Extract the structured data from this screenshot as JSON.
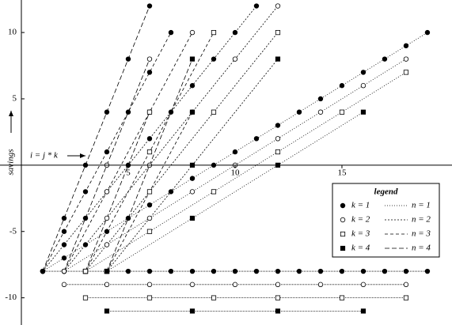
{
  "chart_data": {
    "type": "line-scatter",
    "y_label": "savings",
    "annotation": "i = j * k",
    "xlim": [
      -1,
      20.15
    ],
    "ylim": [
      -12.05,
      12.45
    ],
    "xticks": [
      5,
      10,
      15
    ],
    "yticks": [
      -10,
      -5,
      5,
      10
    ],
    "legend": {
      "title": "legend",
      "position": "lower right",
      "markers": [
        {
          "label": "k = 1",
          "marker": "filled-circle"
        },
        {
          "label": "k = 2",
          "marker": "open-circle"
        },
        {
          "label": "k = 3",
          "marker": "open-square"
        },
        {
          "label": "k = 4",
          "marker": "filled-square"
        }
      ],
      "lines": [
        {
          "label": "n = 1",
          "dash": "1,2"
        },
        {
          "label": "n = 2",
          "dash": "2,2"
        },
        {
          "label": "n = 3",
          "dash": "4,3"
        },
        {
          "label": "n = 4",
          "dash": "6,3"
        }
      ]
    },
    "series": [
      {
        "marker": "filled-circle",
        "dash": "1,1",
        "x": [
          1,
          2,
          3,
          4,
          5,
          6,
          7,
          8,
          9,
          10,
          11,
          12,
          13,
          14,
          15,
          16,
          17,
          18,
          19
        ],
        "y": [
          -8,
          -8,
          -8,
          -8,
          -8,
          -8,
          -8,
          -8,
          -8,
          -8,
          -8,
          -8,
          -8,
          -8,
          -8,
          -8,
          -8,
          -8,
          -8
        ]
      },
      {
        "marker": "open-circle",
        "dash": "1,1",
        "x": [
          2,
          4,
          6,
          8,
          10,
          12,
          14,
          16,
          18
        ],
        "y": [
          -9,
          -9,
          -9,
          -9,
          -9,
          -9,
          -9,
          -9,
          -9
        ]
      },
      {
        "marker": "open-square",
        "dash": "1,1",
        "x": [
          3,
          6,
          9,
          12,
          15,
          18
        ],
        "y": [
          -10,
          -10,
          -10,
          -10,
          -10,
          -10
        ]
      },
      {
        "marker": "filled-square",
        "dash": "1,1",
        "x": [
          4,
          8,
          12,
          16
        ],
        "y": [
          -11,
          -11,
          -11,
          -11
        ]
      },
      {
        "marker": "filled-circle",
        "dash": "1,2",
        "x": [
          1,
          2,
          3,
          4,
          5,
          6,
          7,
          8,
          9,
          10,
          11,
          12,
          13,
          14,
          15,
          16,
          17,
          18,
          19
        ],
        "y": [
          -8,
          -7,
          -6,
          -5,
          -4,
          -3,
          -2,
          -1,
          0,
          1,
          2,
          3,
          4,
          5,
          6,
          7,
          8,
          9,
          10
        ]
      },
      {
        "marker": "open-circle",
        "dash": "1,2",
        "x": [
          2,
          4,
          6,
          8,
          10,
          12,
          14,
          16,
          18
        ],
        "y": [
          -8,
          -6,
          -4,
          -2,
          0,
          2,
          4,
          6,
          8
        ]
      },
      {
        "marker": "open-square",
        "dash": "1,2",
        "x": [
          3,
          6,
          9,
          12,
          15,
          18
        ],
        "y": [
          -8,
          -5,
          -2,
          1,
          4,
          7
        ]
      },
      {
        "marker": "filled-square",
        "dash": "1,2",
        "x": [
          4,
          8,
          12,
          16
        ],
        "y": [
          -8,
          -4,
          0,
          4
        ]
      },
      {
        "marker": "filled-circle",
        "dash": "2,2",
        "x": [
          1,
          2,
          3,
          4,
          5,
          6,
          7,
          8,
          9,
          10,
          11
        ],
        "y": [
          -8,
          -6,
          -4,
          -2,
          0,
          2,
          4,
          6,
          8,
          10,
          12
        ]
      },
      {
        "marker": "open-circle",
        "dash": "2,2",
        "x": [
          2,
          4,
          6,
          8,
          10,
          12
        ],
        "y": [
          -8,
          -4,
          0,
          4,
          8,
          12
        ]
      },
      {
        "marker": "open-square",
        "dash": "2,2",
        "x": [
          3,
          6,
          9,
          12
        ],
        "y": [
          -8,
          -2,
          4,
          10
        ]
      },
      {
        "marker": "filled-square",
        "dash": "2,2",
        "x": [
          4,
          8,
          12
        ],
        "y": [
          -8,
          0,
          8
        ]
      },
      {
        "marker": "filled-circle",
        "dash": "4,3",
        "x": [
          1,
          2,
          3,
          4,
          5,
          6,
          7
        ],
        "y": [
          -8,
          -5,
          -2,
          1,
          4,
          7,
          10
        ]
      },
      {
        "marker": "open-circle",
        "dash": "4,3",
        "x": [
          2,
          4,
          6,
          8
        ],
        "y": [
          -8,
          -2,
          4,
          10
        ]
      },
      {
        "marker": "open-square",
        "dash": "4,3",
        "x": [
          3,
          6,
          9
        ],
        "y": [
          -8,
          1,
          10
        ]
      },
      {
        "marker": "filled-square",
        "dash": "4,3",
        "x": [
          4,
          8
        ],
        "y": [
          -8,
          4
        ]
      },
      {
        "marker": "filled-circle",
        "dash": "6,3",
        "x": [
          1,
          2,
          3,
          4,
          5,
          6
        ],
        "y": [
          -8,
          -4,
          0,
          4,
          8,
          12
        ]
      },
      {
        "marker": "open-circle",
        "dash": "6,3",
        "x": [
          2,
          4,
          6
        ],
        "y": [
          -8,
          0,
          8
        ]
      },
      {
        "marker": "open-square",
        "dash": "6,3",
        "x": [
          3,
          6
        ],
        "y": [
          -8,
          4
        ]
      },
      {
        "marker": "filled-square",
        "dash": "6,3",
        "x": [
          4,
          8
        ],
        "y": [
          -8,
          8
        ]
      }
    ]
  }
}
